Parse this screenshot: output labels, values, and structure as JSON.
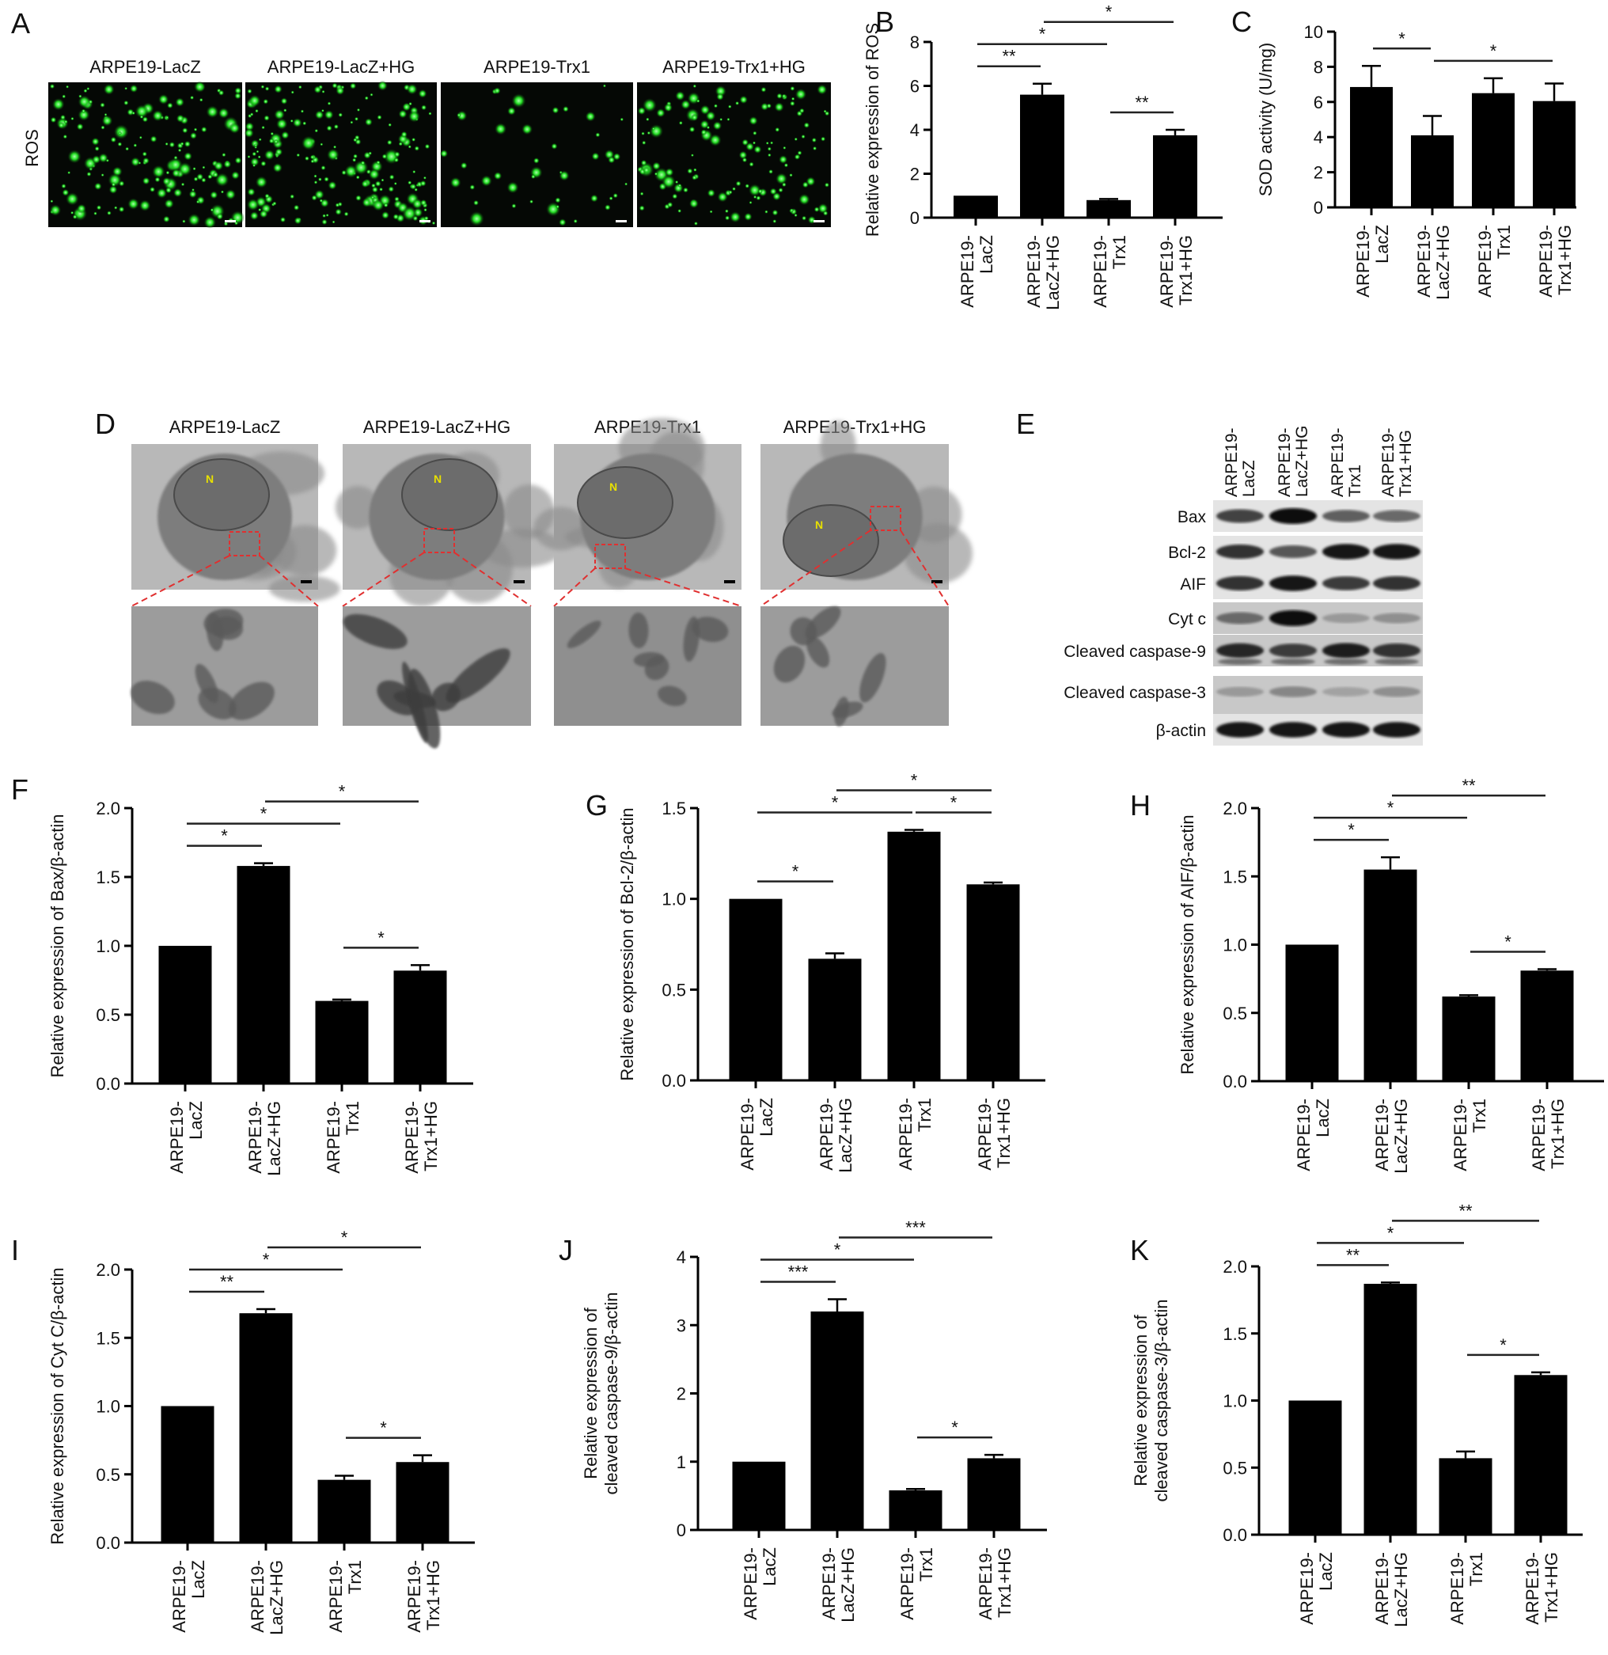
{
  "panel_letters": [
    "A",
    "B",
    "C",
    "D",
    "E",
    "F",
    "G",
    "H",
    "I",
    "J",
    "K"
  ],
  "panel_a": {
    "row_label": "ROS",
    "titles": [
      "ARPE19-LacZ",
      "ARPE19-LacZ+HG",
      "ARPE19-Trx1",
      "ARPE19-Trx1+HG"
    ],
    "stain_color": "#22dd22"
  },
  "panel_d": {
    "titles": [
      "ARPE19-LacZ",
      "ARPE19-LacZ+HG",
      "ARPE19-Trx1",
      "ARPE19-Trx1+HG"
    ],
    "nucleus_label": "N",
    "roi_color": "#e03030"
  },
  "panel_e": {
    "lanes": [
      [
        "ARPE19-",
        "LacZ"
      ],
      [
        "ARPE19-",
        "LacZ+HG"
      ],
      [
        "ARPE19-",
        "Trx1"
      ],
      [
        "ARPE19-",
        "Trx1+HG"
      ]
    ],
    "rows": [
      "Bax",
      "Bcl-2",
      "AIF",
      "Cyt c",
      "Cleaved caspase-9",
      "Cleaved caspase-3",
      "β-actin"
    ],
    "band_intensity": [
      [
        0.7,
        1.0,
        0.55,
        0.5
      ],
      [
        0.8,
        0.6,
        0.95,
        0.95
      ],
      [
        0.8,
        0.95,
        0.75,
        0.8
      ],
      [
        0.5,
        1.0,
        0.25,
        0.3
      ],
      [
        0.85,
        0.75,
        0.9,
        0.8
      ],
      [
        0.25,
        0.35,
        0.2,
        0.3
      ],
      [
        0.95,
        0.95,
        0.95,
        0.95
      ]
    ]
  },
  "chart_data": [
    {
      "panel": "B",
      "type": "bar",
      "categories": [
        [
          "ARPE19-",
          "LacZ"
        ],
        [
          "ARPE19-",
          "LacZ+HG"
        ],
        [
          "ARPE19-",
          "Trx1"
        ],
        [
          "ARPE19-",
          "Trx1+HG"
        ]
      ],
      "values": [
        1.0,
        5.6,
        0.8,
        3.75
      ],
      "errors": [
        0,
        0.5,
        0.05,
        0.25
      ],
      "ylabel": [
        "Relative expression of ROS"
      ],
      "ylim": [
        0,
        8
      ],
      "yticks": [
        0,
        2,
        4,
        6,
        8
      ],
      "ytick_labels": [
        "0",
        "2",
        "4",
        "6",
        "8"
      ],
      "significance": [
        {
          "from": 0,
          "to": 1,
          "label": "**"
        },
        {
          "from": 2,
          "to": 3,
          "label": "**"
        },
        {
          "from": 1,
          "to": 3,
          "label": "*"
        },
        {
          "from": 0,
          "to": 2,
          "label": "*"
        }
      ]
    },
    {
      "panel": "C",
      "type": "bar",
      "categories": [
        [
          "ARPE19-",
          "LacZ"
        ],
        [
          "ARPE19-",
          "LacZ+HG"
        ],
        [
          "ARPE19-",
          "Trx1"
        ],
        [
          "ARPE19-",
          "Trx1+HG"
        ]
      ],
      "values": [
        6.85,
        4.1,
        6.5,
        6.05
      ],
      "errors": [
        1.2,
        1.1,
        0.85,
        1.0
      ],
      "ylabel": [
        "SOD activity (U/mg)"
      ],
      "ylim": [
        0,
        10
      ],
      "yticks": [
        0,
        2,
        4,
        6,
        8,
        10
      ],
      "ytick_labels": [
        "0",
        "2",
        "4",
        "6",
        "8",
        "10"
      ],
      "significance": [
        {
          "from": 0,
          "to": 1,
          "label": "*"
        },
        {
          "from": 1,
          "to": 3,
          "label": "*"
        }
      ]
    },
    {
      "panel": "F",
      "type": "bar",
      "categories": [
        [
          "ARPE19-",
          "LacZ"
        ],
        [
          "ARPE19-",
          "LacZ+HG"
        ],
        [
          "ARPE19-",
          "Trx1"
        ],
        [
          "ARPE19-",
          "Trx1+HG"
        ]
      ],
      "values": [
        1.0,
        1.58,
        0.6,
        0.82
      ],
      "errors": [
        0,
        0.02,
        0.01,
        0.04
      ],
      "ylabel": [
        "Relative expression of Bax/β-actin"
      ],
      "ylim": [
        0,
        2
      ],
      "yticks": [
        0,
        0.5,
        1,
        1.5,
        2
      ],
      "ytick_labels": [
        "0.0",
        "0.5",
        "1.0",
        "1.5",
        "2.0"
      ],
      "significance": [
        {
          "from": 2,
          "to": 3,
          "label": "*"
        },
        {
          "from": 0,
          "to": 1,
          "label": "*"
        },
        {
          "from": 1,
          "to": 3,
          "label": "*"
        },
        {
          "from": 0,
          "to": 2,
          "label": "*"
        }
      ]
    },
    {
      "panel": "G",
      "type": "bar",
      "categories": [
        [
          "ARPE19-",
          "LacZ"
        ],
        [
          "ARPE19-",
          "LacZ+HG"
        ],
        [
          "ARPE19-",
          "Trx1"
        ],
        [
          "ARPE19-",
          "Trx1+HG"
        ]
      ],
      "values": [
        1.0,
        0.67,
        1.37,
        1.08
      ],
      "errors": [
        0,
        0.03,
        0.01,
        0.01
      ],
      "ylabel": [
        "Relative expression of Bcl-2/β-actin"
      ],
      "ylim": [
        0,
        1.5
      ],
      "yticks": [
        0,
        0.5,
        1,
        1.5
      ],
      "ytick_labels": [
        "0.0",
        "0.5",
        "1.0",
        "1.5"
      ],
      "significance": [
        {
          "from": 0,
          "to": 1,
          "label": "*"
        },
        {
          "from": 2,
          "to": 3,
          "label": "*"
        },
        {
          "from": 0,
          "to": 2,
          "label": "*"
        },
        {
          "from": 1,
          "to": 3,
          "label": "*"
        }
      ]
    },
    {
      "panel": "H",
      "type": "bar",
      "categories": [
        [
          "ARPE19-",
          "LacZ"
        ],
        [
          "ARPE19-",
          "LacZ+HG"
        ],
        [
          "ARPE19-",
          "Trx1"
        ],
        [
          "ARPE19-",
          "Trx1+HG"
        ]
      ],
      "values": [
        1.0,
        1.55,
        0.62,
        0.81
      ],
      "errors": [
        0,
        0.09,
        0.01,
        0.01
      ],
      "ylabel": [
        "Relative expression of AIF/β-actin"
      ],
      "ylim": [
        0,
        2
      ],
      "yticks": [
        0,
        0.5,
        1,
        1.5,
        2
      ],
      "ytick_labels": [
        "0.0",
        "0.5",
        "1.0",
        "1.5",
        "2.0"
      ],
      "significance": [
        {
          "from": 2,
          "to": 3,
          "label": "*"
        },
        {
          "from": 0,
          "to": 1,
          "label": "*"
        },
        {
          "from": 1,
          "to": 3,
          "label": "**"
        },
        {
          "from": 0,
          "to": 2,
          "label": "*"
        }
      ]
    },
    {
      "panel": "I",
      "type": "bar",
      "categories": [
        [
          "ARPE19-",
          "LacZ"
        ],
        [
          "ARPE19-",
          "LacZ+HG"
        ],
        [
          "ARPE19-",
          "Trx1"
        ],
        [
          "ARPE19-",
          "Trx1+HG"
        ]
      ],
      "values": [
        1.0,
        1.68,
        0.46,
        0.59
      ],
      "errors": [
        0,
        0.03,
        0.03,
        0.05
      ],
      "ylabel": [
        "Relative expression of Cyt C/β-actin"
      ],
      "ylim": [
        0,
        2
      ],
      "yticks": [
        0,
        0.5,
        1,
        1.5,
        2
      ],
      "ytick_labels": [
        "0.0",
        "0.5",
        "1.0",
        "1.5",
        "2.0"
      ],
      "significance": [
        {
          "from": 2,
          "to": 3,
          "label": "*"
        },
        {
          "from": 0,
          "to": 1,
          "label": "**"
        },
        {
          "from": 1,
          "to": 3,
          "label": "*"
        },
        {
          "from": 0,
          "to": 2,
          "label": "*"
        }
      ]
    },
    {
      "panel": "J",
      "type": "bar",
      "categories": [
        [
          "ARPE19-",
          "LacZ"
        ],
        [
          "ARPE19-",
          "LacZ+HG"
        ],
        [
          "ARPE19-",
          "Trx1"
        ],
        [
          "ARPE19-",
          "Trx1+HG"
        ]
      ],
      "values": [
        1.0,
        3.2,
        0.58,
        1.05
      ],
      "errors": [
        0,
        0.18,
        0.02,
        0.05
      ],
      "ylabel": [
        "Relative expression of",
        "cleaved caspase-9/β-actin"
      ],
      "ylim": [
        0,
        4
      ],
      "yticks": [
        0,
        1,
        2,
        3,
        4
      ],
      "ytick_labels": [
        "0",
        "1",
        "2",
        "3",
        "4"
      ],
      "significance": [
        {
          "from": 2,
          "to": 3,
          "label": "*"
        },
        {
          "from": 0,
          "to": 1,
          "label": "***"
        },
        {
          "from": 1,
          "to": 3,
          "label": "***"
        },
        {
          "from": 0,
          "to": 2,
          "label": "*"
        }
      ]
    },
    {
      "panel": "K",
      "type": "bar",
      "categories": [
        [
          "ARPE19-",
          "LacZ"
        ],
        [
          "ARPE19-",
          "LacZ+HG"
        ],
        [
          "ARPE19-",
          "Trx1"
        ],
        [
          "ARPE19-",
          "Trx1+HG"
        ]
      ],
      "values": [
        1.0,
        1.87,
        0.57,
        1.19
      ],
      "errors": [
        0,
        0.01,
        0.05,
        0.02
      ],
      "ylabel": [
        "Relative expression of",
        "cleaved caspase-3/β-actin"
      ],
      "ylim": [
        0,
        2
      ],
      "yticks": [
        0,
        0.5,
        1,
        1.5,
        2
      ],
      "ytick_labels": [
        "0.0",
        "0.5",
        "1.0",
        "1.5",
        "2.0"
      ],
      "significance": [
        {
          "from": 2,
          "to": 3,
          "label": "*"
        },
        {
          "from": 0,
          "to": 1,
          "label": "**"
        },
        {
          "from": 1,
          "to": 3,
          "label": "**"
        },
        {
          "from": 0,
          "to": 2,
          "label": "*"
        }
      ]
    }
  ]
}
